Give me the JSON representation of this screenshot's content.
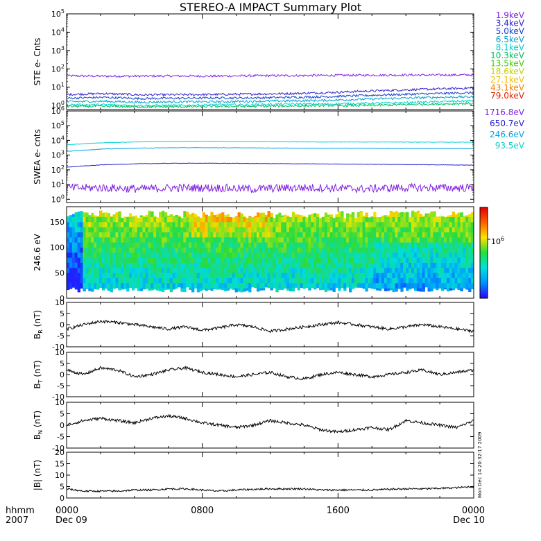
{
  "title": "STEREO-A IMPACT Summary Plot",
  "stamp": "Mon Dec 14 20:32:17 2009",
  "time_axis": {
    "labels": [
      {
        "time": "0000",
        "date": "Dec 09"
      },
      {
        "time": "0800",
        "date": ""
      },
      {
        "time": "1600",
        "date": ""
      },
      {
        "time": "0000",
        "date": "Dec 10"
      }
    ],
    "row_label_top": "hhmm",
    "row_label_bottom": "2007"
  },
  "colorbar": {
    "label": "10^6",
    "colors": [
      "#2a00ff",
      "#0090ff",
      "#00e0e0",
      "#20e040",
      "#ffe000",
      "#ff6000",
      "#e00000"
    ]
  },
  "chart_data": [
    {
      "id": "ste",
      "type": "line",
      "ylabel": "STE e- Cnts",
      "scale": "log",
      "ylim": [
        0.6,
        100000
      ],
      "yticks": [
        1,
        10,
        100,
        1000,
        10000,
        100000
      ],
      "ytick_labels": [
        "10^0",
        "10^1",
        "10^2",
        "10^3",
        "10^4",
        "10^5"
      ],
      "x_range_hours": [
        0,
        24
      ],
      "series": [
        {
          "name": "1.9keV",
          "color": "#8020e0",
          "values": [
            42,
            40,
            40,
            41,
            40,
            42,
            43,
            44,
            45,
            46,
            46,
            47
          ]
        },
        {
          "name": "3.4keV",
          "color": "#3020d0",
          "values": [
            4,
            4.5,
            3.8,
            3.9,
            4,
            4.2,
            4.5,
            5,
            6,
            7,
            8,
            9
          ]
        },
        {
          "name": "5.0keV",
          "color": "#1040d0",
          "values": [
            2.5,
            2.8,
            2.4,
            2.5,
            2.6,
            2.6,
            2.8,
            3,
            3.5,
            4,
            4.5,
            5
          ]
        },
        {
          "name": "6.5keV",
          "color": "#00a0d0",
          "values": [
            1.6,
            1.7,
            1.5,
            1.6,
            1.6,
            1.7,
            1.8,
            1.9,
            2.2,
            2.5,
            2.8,
            3
          ]
        },
        {
          "name": "8.1keV",
          "color": "#00d0d0",
          "values": [
            1.1,
            1.1,
            1,
            1,
            1.1,
            1.1,
            1.2,
            1.2,
            1.3,
            1.4,
            1.6,
            1.8
          ]
        },
        {
          "name": "10.3keV",
          "color": "#00c060",
          "values": [
            0.9,
            0.9,
            0.85,
            0.85,
            0.9,
            0.9,
            0.95,
            1,
            1,
            1.1,
            1.2,
            1.3
          ]
        },
        {
          "name": "13.5keV",
          "color": "#40d000",
          "values": []
        },
        {
          "name": "18.6keV",
          "color": "#c0d000",
          "values": []
        },
        {
          "name": "27.1keV",
          "color": "#f0c000",
          "values": []
        },
        {
          "name": "43.1keV",
          "color": "#f08000",
          "values": []
        },
        {
          "name": "79.0keV",
          "color": "#e02000",
          "values": []
        }
      ]
    },
    {
      "id": "swea",
      "type": "line",
      "ylabel": "SWEA e- cnts",
      "scale": "log",
      "ylim": [
        0.6,
        1000000
      ],
      "yticks": [
        1,
        10,
        100,
        1000,
        10000,
        100000,
        1000000
      ],
      "ytick_labels": [
        "10^0",
        "10^1",
        "10^2",
        "10^3",
        "10^4",
        "10^5",
        "10^6"
      ],
      "x_range_hours": [
        0,
        24
      ],
      "series": [
        {
          "name": "1716.8eV",
          "color": "#8020e0",
          "values": [
            6,
            6,
            5,
            6,
            6,
            5,
            6,
            6,
            5,
            6,
            6,
            6
          ]
        },
        {
          "name": "650.7eV",
          "color": "#2020d0",
          "values": [
            150,
            220,
            260,
            280,
            280,
            270,
            260,
            250,
            240,
            230,
            220,
            210
          ]
        },
        {
          "name": "246.6eV",
          "color": "#00a0e0",
          "values": [
            1800,
            2600,
            3000,
            3200,
            3200,
            3100,
            3000,
            2900,
            2900,
            2800,
            2800,
            2800
          ]
        },
        {
          "name": "93.5eV",
          "color": "#00d0d0",
          "values": [
            5000,
            7000,
            8000,
            8500,
            8500,
            8200,
            8000,
            7800,
            7800,
            7700,
            7600,
            7600
          ]
        }
      ]
    },
    {
      "id": "pad",
      "type": "heatmap",
      "ylabel": "246.6 eV",
      "ylim": [
        0,
        180
      ],
      "yticks": [
        0,
        50,
        100,
        150
      ],
      "x_range_hours": [
        0,
        24
      ],
      "note": "pitch angle distribution, color = counts"
    },
    {
      "id": "br",
      "type": "line",
      "ylabel": "B_R (nT)",
      "ylim": [
        -10,
        10
      ],
      "yticks": [
        -10,
        -5,
        0,
        5,
        10
      ],
      "x_range_hours": [
        0,
        24
      ],
      "values": [
        -2,
        0,
        1.5,
        1,
        0,
        -1,
        -2,
        -1,
        -2.5,
        -1.5,
        0,
        -1,
        -3,
        -2,
        -1,
        0,
        1,
        0,
        -1,
        -2,
        -1,
        0,
        -1,
        -2,
        -3
      ]
    },
    {
      "id": "bt",
      "type": "line",
      "ylabel": "B_T (nT)",
      "ylim": [
        -10,
        10
      ],
      "yticks": [
        -10,
        -5,
        0,
        5,
        10
      ],
      "x_range_hours": [
        0,
        24
      ],
      "values": [
        2,
        0,
        3,
        2,
        -1,
        0,
        2,
        3,
        1,
        0,
        -1,
        0,
        1,
        -1,
        -2,
        0,
        1,
        0,
        -1,
        0,
        1,
        2,
        0,
        1,
        2
      ]
    },
    {
      "id": "bn",
      "type": "line",
      "ylabel": "B_N (nT)",
      "ylim": [
        -10,
        10
      ],
      "yticks": [
        -10,
        -5,
        0,
        5,
        10
      ],
      "x_range_hours": [
        0,
        24
      ],
      "values": [
        0,
        2,
        3,
        2,
        1,
        3,
        4,
        3,
        1,
        0,
        -1,
        0,
        2,
        1,
        0,
        -2,
        -3,
        -2,
        -1,
        -2,
        2,
        1,
        0,
        -1,
        2
      ]
    },
    {
      "id": "bmag",
      "type": "line",
      "ylabel": "|B| (nT)",
      "ylim": [
        0,
        20
      ],
      "yticks": [
        0,
        5,
        10,
        15,
        20
      ],
      "x_range_hours": [
        0,
        24
      ],
      "values": [
        4,
        3,
        3,
        3,
        3.5,
        3.5,
        4,
        4,
        3.5,
        3,
        3.5,
        3.8,
        4,
        4,
        4,
        3.5,
        3.5,
        3.5,
        3.5,
        3.8,
        4,
        4,
        4.2,
        4.5,
        5
      ]
    }
  ]
}
